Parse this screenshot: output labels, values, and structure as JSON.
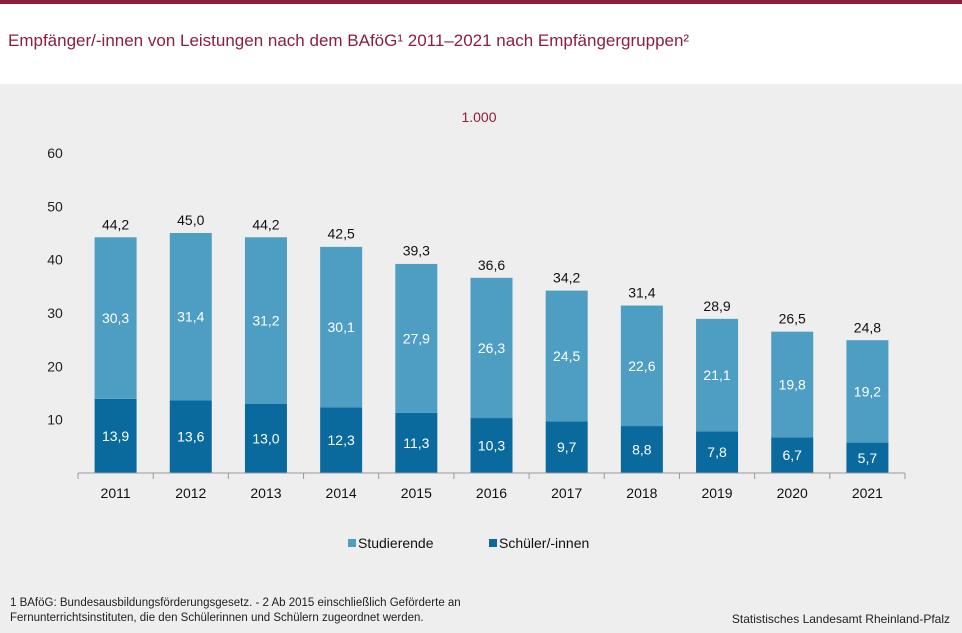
{
  "title": "Empfänger/-innen von Leistungen nach dem BAföG¹ 2011–2021 nach Empfängergruppen²",
  "unit": "1.000",
  "footnote_1": "1 BAföG: Bundesausbildungsförderungsgesetz.  - 2 Ab 2015 einschließlich Geförderte an",
  "footnote_2": "Fernunterrichtsinstituten, die den Schülerinnen und Schülern zugeordnet werden.",
  "source": "Statistisches Landesamt Rheinland-Pfalz",
  "colors": {
    "title": "#8c1f3b",
    "studierende": "#4e9ec3",
    "schueler": "#0a6a9d"
  },
  "chart_data": {
    "type": "bar",
    "stacked": true,
    "categories": [
      "2011",
      "2012",
      "2013",
      "2014",
      "2015",
      "2016",
      "2017",
      "2018",
      "2019",
      "2020",
      "2021"
    ],
    "series": [
      {
        "name": "Schüler/-innen",
        "values": [
          13.9,
          13.6,
          13.0,
          12.3,
          11.3,
          10.3,
          9.7,
          8.8,
          7.8,
          6.7,
          5.7
        ],
        "labels": [
          "13,9",
          "13,6",
          "13,0",
          "12,3",
          "11,3",
          "10,3",
          "9,7",
          "8,8",
          "7,8",
          "6,7",
          "5,7"
        ]
      },
      {
        "name": "Studierende",
        "values": [
          30.3,
          31.4,
          31.2,
          30.1,
          27.9,
          26.3,
          24.5,
          22.6,
          21.1,
          19.8,
          19.2
        ],
        "labels": [
          "30,3",
          "31,4",
          "31,2",
          "30,1",
          "27,9",
          "26,3",
          "24,5",
          "22,6",
          "21,1",
          "19,8",
          "19,2"
        ]
      }
    ],
    "totals": [
      44.2,
      45.0,
      44.2,
      42.5,
      39.3,
      36.6,
      34.2,
      31.4,
      28.9,
      26.5,
      24.8
    ],
    "total_labels": [
      "44,2",
      "45,0",
      "44,2",
      "42,5",
      "39,3",
      "36,6",
      "34,2",
      "31,4",
      "28,9",
      "26,5",
      "24,8"
    ],
    "ylim": [
      0,
      60
    ],
    "yticks": [
      10,
      20,
      30,
      40,
      50,
      60
    ],
    "ytick_labels": [
      "10",
      "20",
      "30",
      "40",
      "50",
      "60"
    ],
    "grid": false,
    "legend": "bottom"
  }
}
